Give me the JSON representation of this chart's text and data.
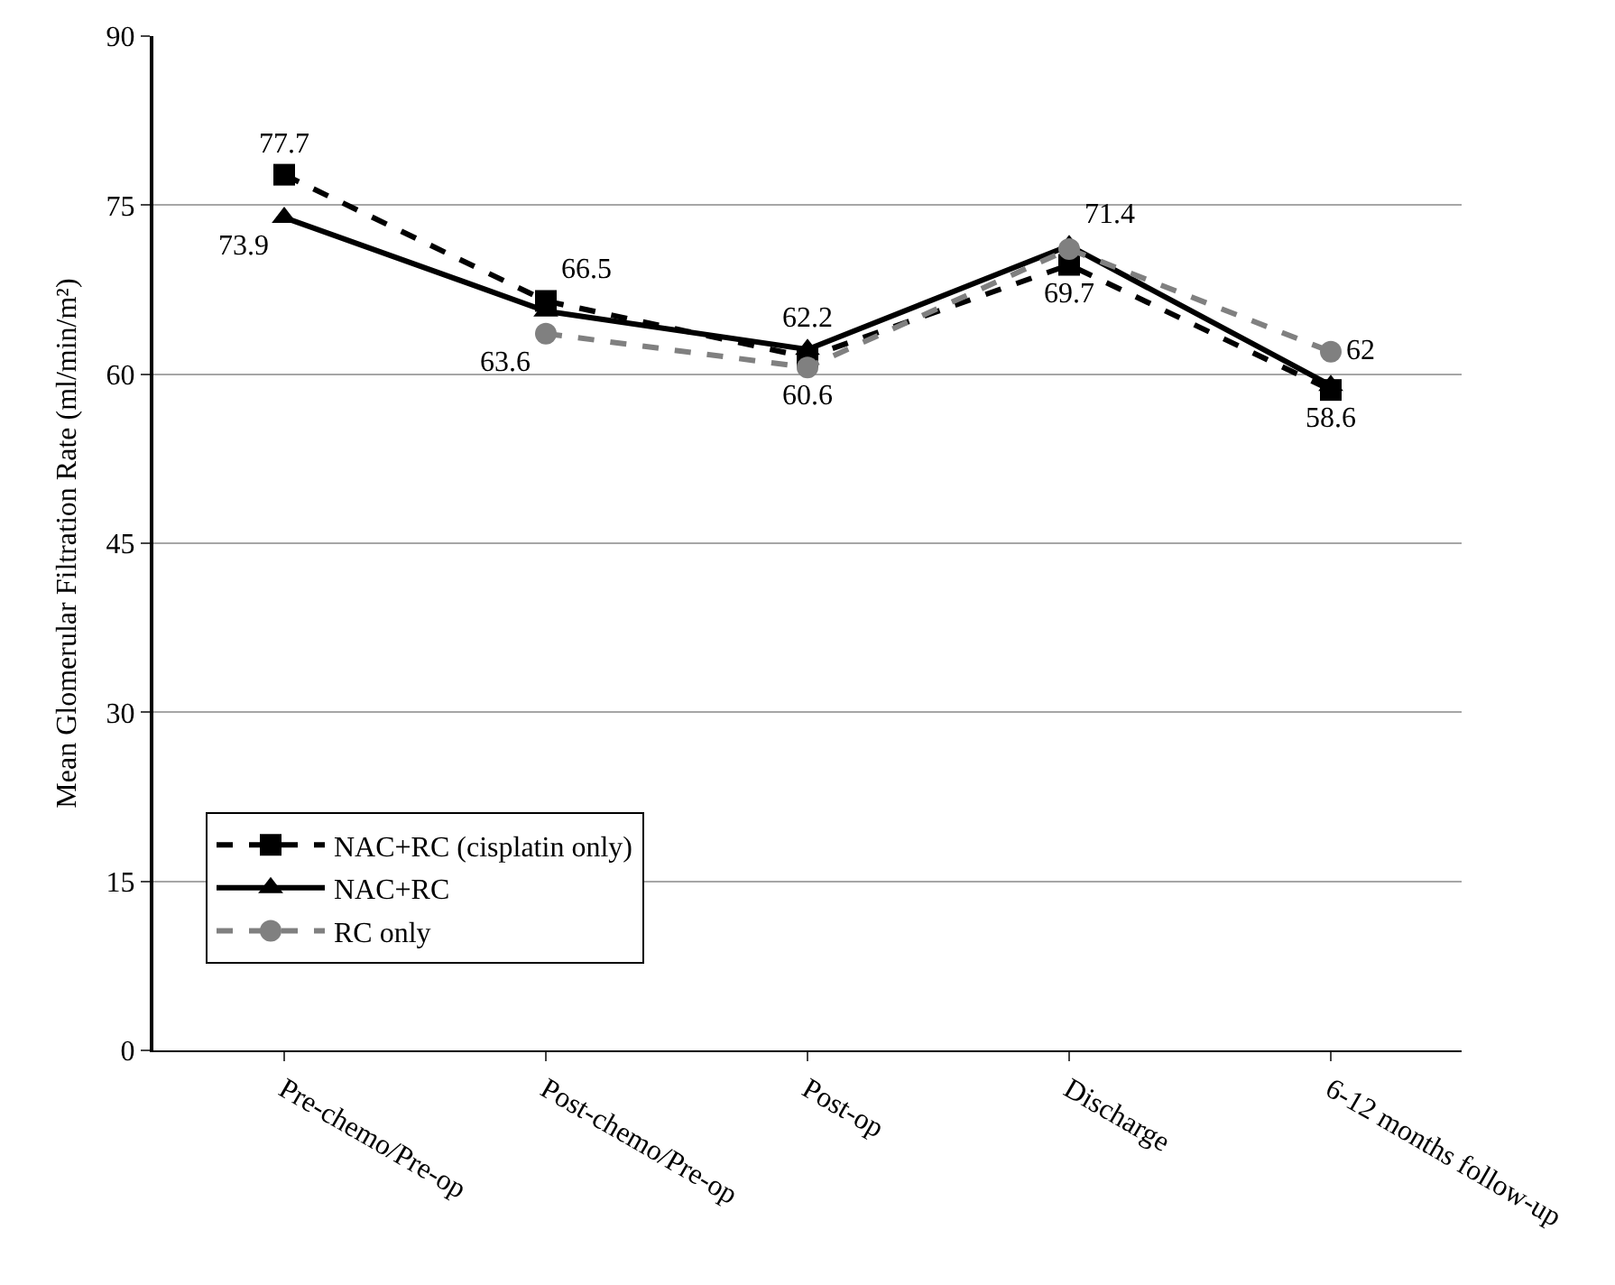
{
  "chart_data": {
    "type": "line",
    "ylabel": "Mean Glomerular Filtration Rate (ml/min/m²)",
    "categories": [
      "Pre-chemo/Pre-op",
      "Post-chemo/Pre-op",
      "Post-op",
      "Discharge",
      "6-12 months follow-up"
    ],
    "series": [
      {
        "name": "NAC+RC (cisplatin only)",
        "color": "#000000",
        "marker": "square",
        "line_style": "dashed",
        "values": [
          77.7,
          66.5,
          61.5,
          69.7,
          58.6
        ],
        "value_labels": [
          "77.7",
          "66.5",
          null,
          "69.7",
          "58.6"
        ]
      },
      {
        "name": "NAC+RC",
        "color": "#000000",
        "marker": "triangle",
        "line_style": "solid",
        "values": [
          73.9,
          65.6,
          62.2,
          71.4,
          59.0
        ],
        "value_labels": [
          "73.9",
          null,
          "62.2",
          "71.4",
          null
        ]
      },
      {
        "name": "RC only",
        "color": "#808080",
        "marker": "circle",
        "line_style": "dashed",
        "values": [
          null,
          63.6,
          60.6,
          71.1,
          62
        ],
        "value_labels": [
          null,
          "63.6",
          "60.6",
          null,
          "62"
        ]
      }
    ],
    "ylim": [
      0,
      90
    ],
    "yticks": [
      0,
      15,
      30,
      45,
      60,
      75,
      90
    ],
    "grid": "y",
    "legend": "bottom left"
  }
}
